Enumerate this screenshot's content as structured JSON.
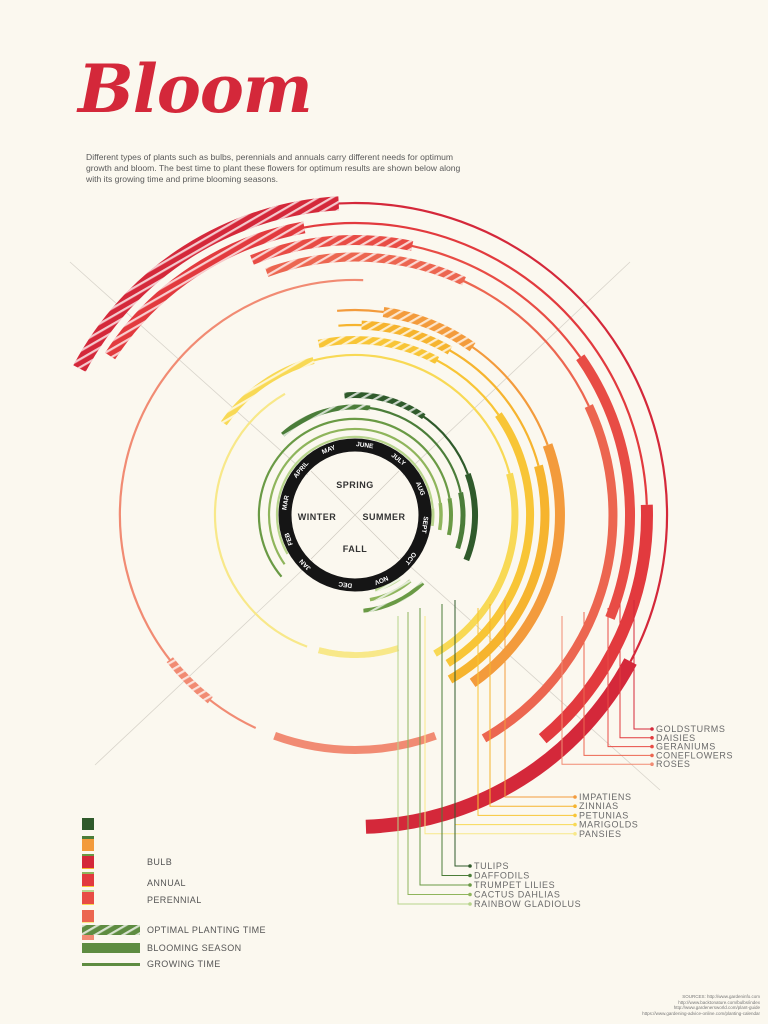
{
  "header": {
    "title": "Bloom",
    "intro": "Different types of plants such as bulbs, perennials and annuals carry different needs for optimum growth and bloom. The best time to plant these flowers for optimum results are shown below along with its growing time and prime blooming seasons."
  },
  "seasons": [
    "SPRING",
    "SUMMER",
    "FALL",
    "WINTER"
  ],
  "months": [
    "JAN",
    "FEB",
    "MAR",
    "APRIL",
    "MAY",
    "JUNE",
    "JULY",
    "AUG",
    "SEPT",
    "OCT",
    "NOV",
    "DEC"
  ],
  "plants": {
    "perennial": [
      "GOLDSTURMS",
      "DAISIES",
      "GERANIUMS",
      "CONEFLOWERS",
      "ROSES"
    ],
    "annual": [
      "IMPATIENS",
      "ZINNIAS",
      "PETUNIAS",
      "MARIGOLDS",
      "PANSIES"
    ],
    "bulb": [
      "TULIPS",
      "DAFFODILS",
      "TRUMPET LILIES",
      "CACTUS DAHLIAS",
      "RAINBOW GLADIOLUS"
    ]
  },
  "colors": {
    "perennial": [
      "#d4283a",
      "#e23a3e",
      "#e84c45",
      "#ec6650",
      "#f18b73"
    ],
    "annual": [
      "#f39b3c",
      "#f6b42e",
      "#f8c536",
      "#f8d955",
      "#f8e889"
    ],
    "bulb": [
      "#2f5a2b",
      "#4b7d39",
      "#6a9a45",
      "#8fb55c",
      "#b7d48b"
    ]
  },
  "legend": {
    "types": [
      {
        "label": "BULB",
        "colors": [
          "#2f5a2b",
          "#4b7d39",
          "#6a9a45",
          "#8fb55c",
          "#b7d48b"
        ]
      },
      {
        "label": "ANNUAL",
        "colors": [
          "#f39b3c",
          "#f6b42e",
          "#f8c536",
          "#f8d955",
          "#f8e889"
        ]
      },
      {
        "label": "PERENNIAL",
        "colors": [
          "#d4283a",
          "#e23a3e",
          "#e84c45",
          "#ec6650",
          "#f18b73"
        ]
      }
    ],
    "styles": [
      {
        "label": "OPTIMAL PLANTING TIME"
      },
      {
        "label": "BLOOMING SEASON"
      },
      {
        "label": "GROWING TIME"
      }
    ]
  },
  "sources": [
    "SOURCES: http://www.gardeninfo.com",
    "http://www.backtonature.com/bulbs/index",
    "http://www.gardenersworld.com/plant-guide",
    "https://www.gardening-advice-online.com/planting-calendar"
  ]
}
